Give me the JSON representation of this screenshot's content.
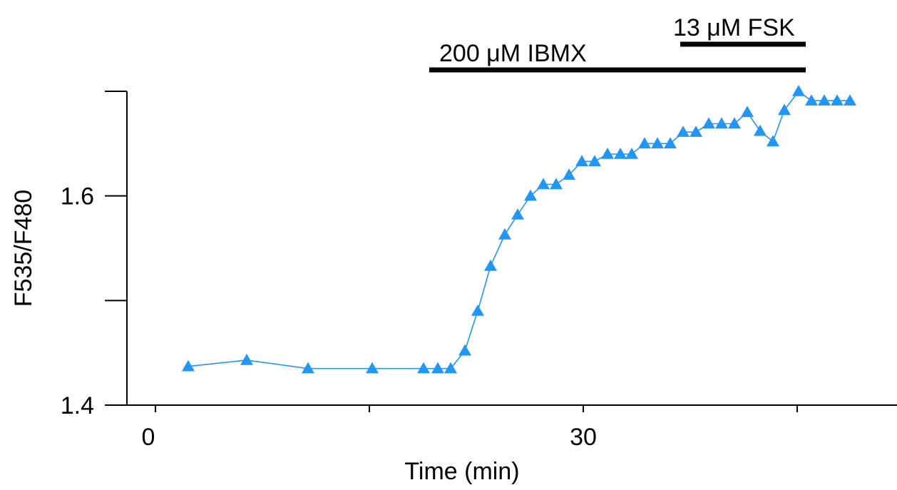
{
  "chart_data": {
    "type": "line",
    "xlabel": "Time (min)",
    "ylabel": "F535/F480",
    "xlim": [
      -2,
      52
    ],
    "ylim": [
      1.4,
      1.7
    ],
    "x_ticks": [
      0,
      15,
      30,
      45
    ],
    "x_tick_labels": [
      "0",
      "",
      "30",
      ""
    ],
    "y_ticks": [
      1.4,
      1.5,
      1.6,
      1.7
    ],
    "y_tick_labels": [
      "1.4",
      "",
      "1.6",
      ""
    ],
    "grid": false,
    "marker": "triangle",
    "color": "#2196f3",
    "series": [
      {
        "x": [
          2.3,
          6.4,
          10.7,
          15.2,
          18.8,
          19.8,
          20.7,
          21.7,
          22.6,
          23.5,
          24.5,
          25.4,
          26.3,
          27.2,
          28.1,
          29.0,
          29.9,
          30.8,
          31.7,
          32.6,
          33.4,
          34.3,
          35.2,
          36.1,
          37.0,
          37.9,
          38.8,
          39.7,
          40.6,
          41.5,
          42.4,
          43.3,
          44.1,
          45.1,
          46.0,
          46.9,
          47.8,
          48.7
        ],
        "y": [
          1.437,
          1.443,
          1.435,
          1.435,
          1.435,
          1.435,
          1.435,
          1.452,
          1.49,
          1.533,
          1.563,
          1.582,
          1.6,
          1.611,
          1.611,
          1.62,
          1.633,
          1.633,
          1.64,
          1.64,
          1.64,
          1.65,
          1.65,
          1.65,
          1.661,
          1.661,
          1.669,
          1.669,
          1.669,
          1.68,
          1.662,
          1.652,
          1.682,
          1.7,
          1.691,
          1.691,
          1.691,
          1.691
        ]
      }
    ],
    "annotations": [
      {
        "label": "200 μM IBMX",
        "x_start": 19.2,
        "x_end": 45.6,
        "level": 1
      },
      {
        "label": "13 μM FSK",
        "x_start": 36.8,
        "x_end": 45.6,
        "level": 2
      }
    ]
  }
}
